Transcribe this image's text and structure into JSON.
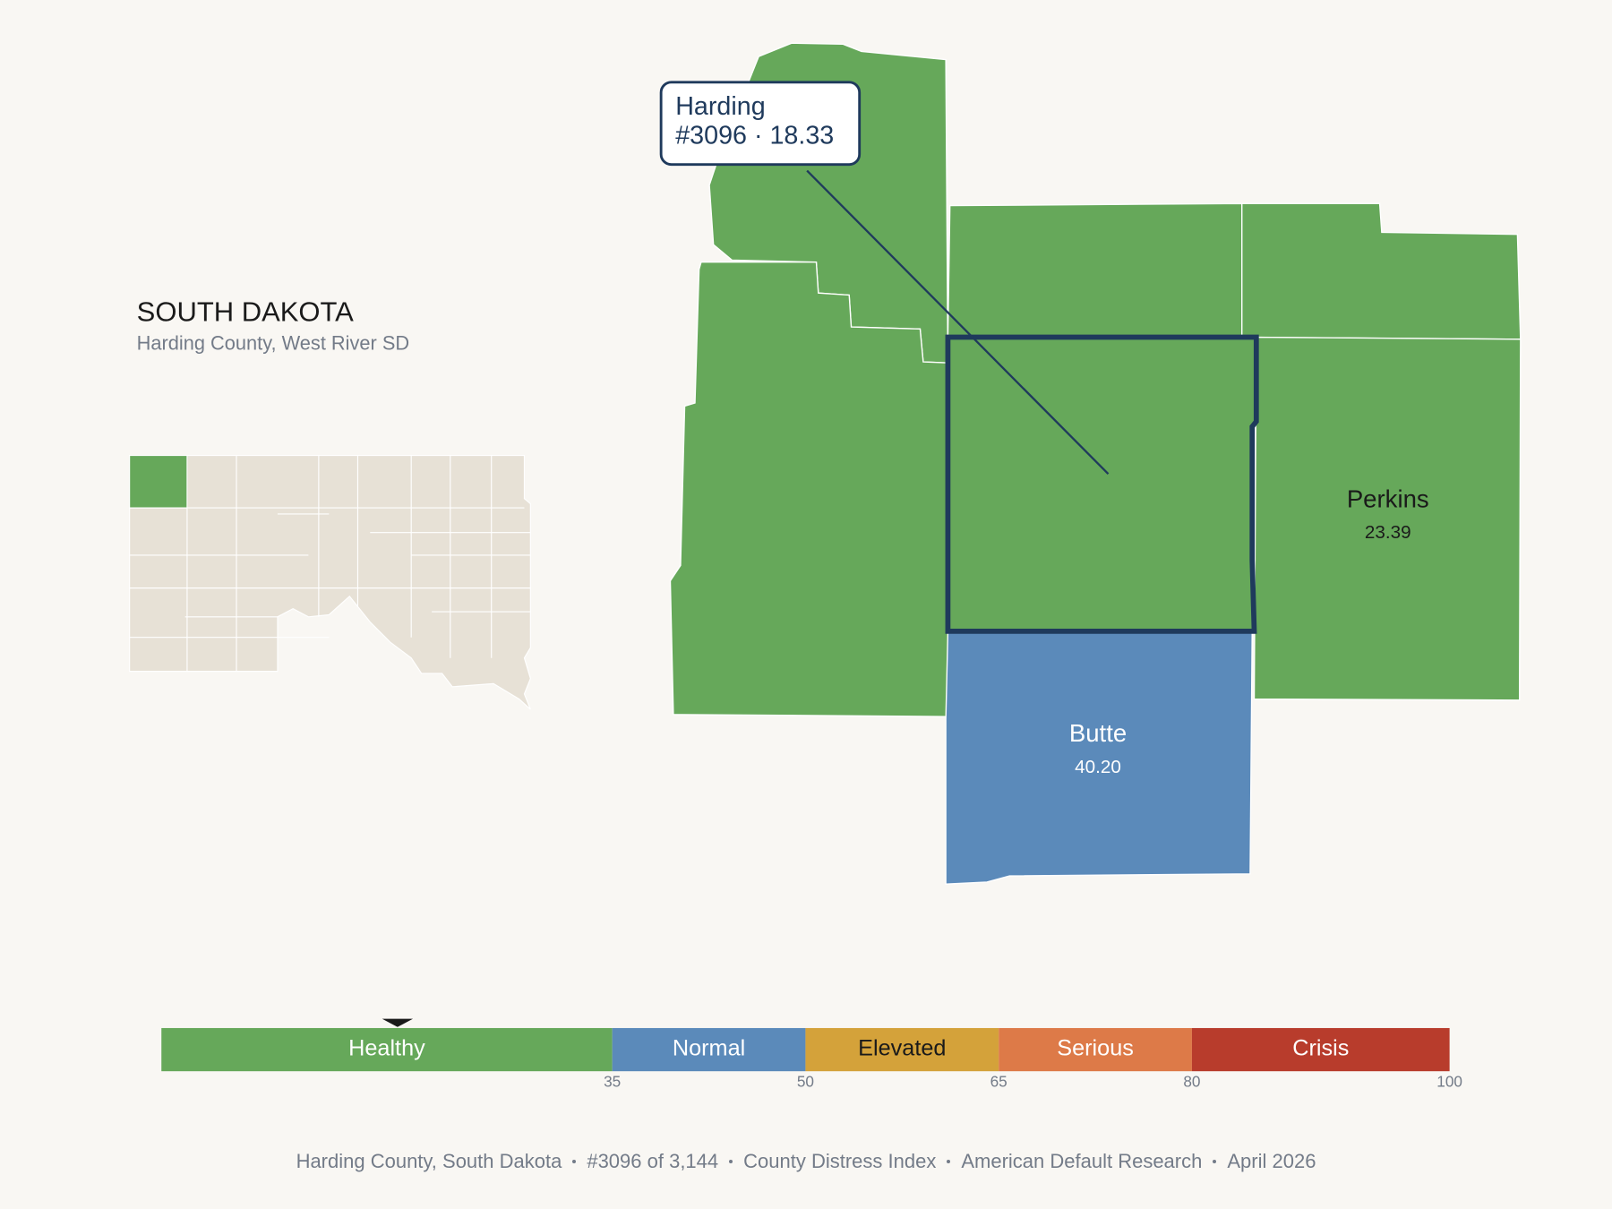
{
  "header": {
    "title": "SOUTH DAKOTA",
    "subtitle": "Harding County, West River SD"
  },
  "selected": {
    "name": "Harding",
    "label": "#3096 · 18.33",
    "score": 18.33
  },
  "counties": [
    {
      "name": "Perkins",
      "value": "23.39"
    },
    {
      "name": "Butte",
      "value": "40.20"
    }
  ],
  "scale": {
    "min": 0,
    "marker_color": "#1a1a1a",
    "segments": [
      {
        "label": "Healthy",
        "color": "#66a85a",
        "max": 35,
        "text_color": "#ffffff"
      },
      {
        "label": "Normal",
        "color": "#5b8aba",
        "max": 50,
        "text_color": "#ffffff"
      },
      {
        "label": "Elevated",
        "color": "#d4a23a",
        "max": 65,
        "text_color": "#1a1a1a"
      },
      {
        "label": "Serious",
        "color": "#dd7a48",
        "max": 80,
        "text_color": "#ffffff"
      },
      {
        "label": "Crisis",
        "color": "#b83c2c",
        "max": 100,
        "text_color": "#ffffff"
      }
    ]
  },
  "footer": {
    "items": [
      "Harding County, South Dakota",
      "#3096 of 3,144",
      "County Distress Index",
      "American Default Research",
      "April 2026"
    ]
  }
}
